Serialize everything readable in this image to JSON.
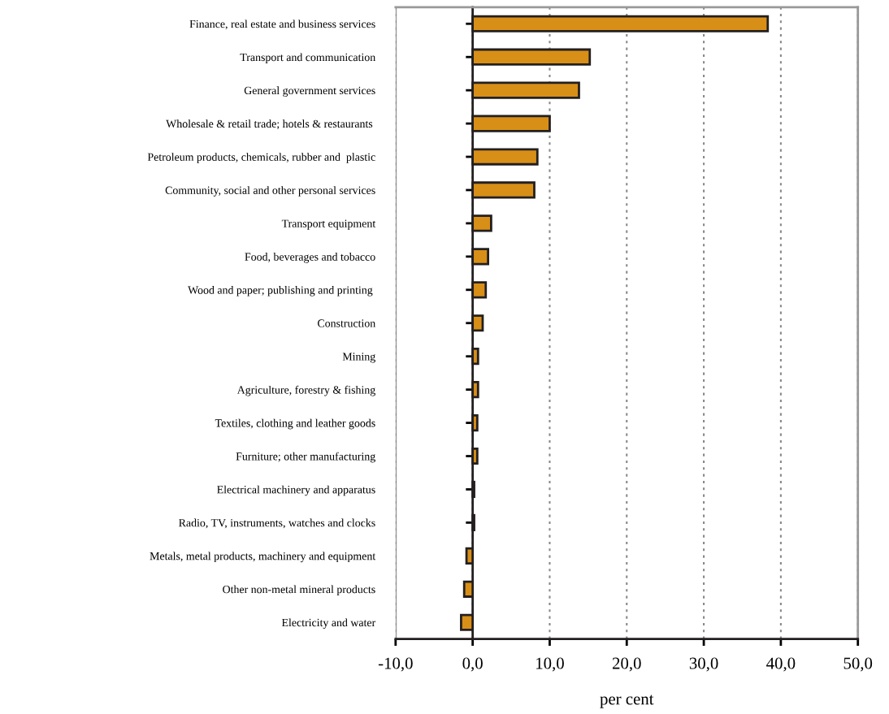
{
  "chart_data": {
    "type": "bar",
    "orientation": "horizontal",
    "xlabel": "per cent",
    "categories": [
      "Finance, real estate and business services",
      "Transport and communication",
      "General government services",
      "Wholesale & retail trade; hotels & restaurants ",
      "Petroleum products, chemicals, rubber and  plastic",
      "Community, social and other personal services",
      "Transport equipment",
      "Food, beverages and tobacco",
      "Wood and paper; publishing and printing ",
      "Construction",
      "Mining",
      "Agriculture, forestry & fishing",
      "Textiles, clothing and leather goods",
      "Furniture; other manufacturing",
      "Electrical machinery and apparatus",
      "Radio, TV, instruments, watches and clocks",
      "Metals, metal products, machinery and equipment",
      "Other non-metal mineral products",
      "Electricity and water"
    ],
    "values": [
      38.3,
      15.2,
      13.8,
      10.0,
      8.4,
      8.0,
      2.4,
      2.0,
      1.7,
      1.3,
      0.7,
      0.7,
      0.6,
      0.6,
      0.2,
      0.2,
      -0.8,
      -1.1,
      -1.5
    ],
    "color": "#d88f17",
    "xlim": [
      -10,
      50
    ],
    "xticks": [
      {
        "value": -10,
        "label": "-10,0"
      },
      {
        "value": 0,
        "label": "0,0"
      },
      {
        "value": 10,
        "label": "10,0"
      },
      {
        "value": 20,
        "label": "20,0"
      },
      {
        "value": 30,
        "label": "30,0"
      },
      {
        "value": 40,
        "label": "40,0"
      },
      {
        "value": 50,
        "label": "50,0"
      }
    ],
    "grid": "x"
  }
}
